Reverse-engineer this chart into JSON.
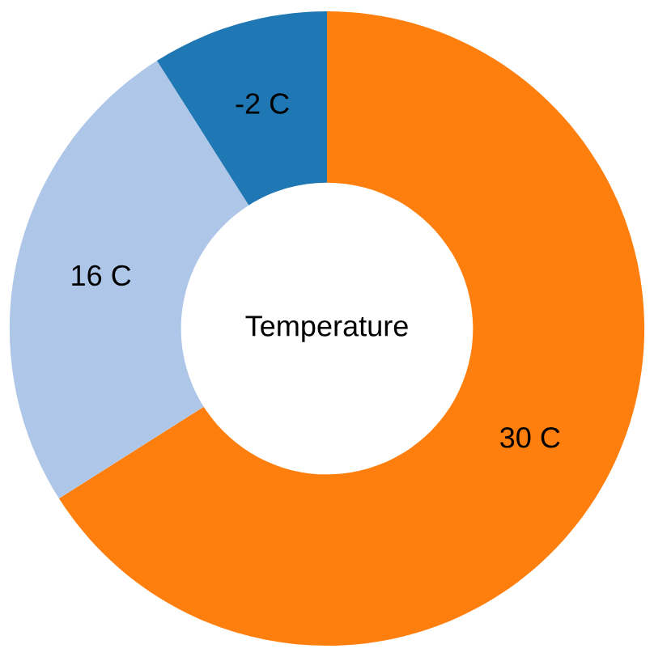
{
  "chart_data": {
    "type": "donut",
    "title": "Temperature",
    "categories": [
      "30 C",
      "16 C",
      "-2 C"
    ],
    "values": [
      66,
      25,
      9
    ],
    "colors": [
      "#ff7f0e",
      "#aec7e8",
      "#1f77b4"
    ]
  }
}
